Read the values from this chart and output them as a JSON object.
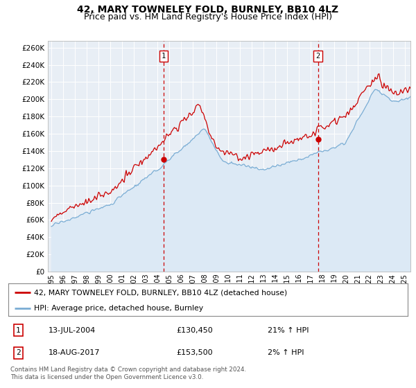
{
  "title": "42, MARY TOWNELEY FOLD, BURNLEY, BB10 4LZ",
  "subtitle": "Price paid vs. HM Land Registry's House Price Index (HPI)",
  "ylabel_ticks": [
    "£0",
    "£20K",
    "£40K",
    "£60K",
    "£80K",
    "£100K",
    "£120K",
    "£140K",
    "£160K",
    "£180K",
    "£200K",
    "£220K",
    "£240K",
    "£260K"
  ],
  "ytick_values": [
    0,
    20000,
    40000,
    60000,
    80000,
    100000,
    120000,
    140000,
    160000,
    180000,
    200000,
    220000,
    240000,
    260000
  ],
  "ylim": [
    0,
    268000
  ],
  "xlim_start": 1994.7,
  "xlim_end": 2025.5,
  "xtick_years": [
    1995,
    1996,
    1997,
    1998,
    1999,
    2000,
    2001,
    2002,
    2003,
    2004,
    2005,
    2006,
    2007,
    2008,
    2009,
    2010,
    2011,
    2012,
    2013,
    2014,
    2015,
    2016,
    2017,
    2018,
    2019,
    2020,
    2021,
    2022,
    2023,
    2024,
    2025
  ],
  "red_line_color": "#cc0000",
  "blue_line_color": "#7aadd4",
  "fill_color": "#dce9f5",
  "background_color": "#e8eef5",
  "vline_color": "#cc0000",
  "marker1_x": 2004.54,
  "marker1_y": 130450,
  "marker2_x": 2017.63,
  "marker2_y": 153500,
  "legend_label_red": "42, MARY TOWNELEY FOLD, BURNLEY, BB10 4LZ (detached house)",
  "legend_label_blue": "HPI: Average price, detached house, Burnley",
  "table_row1": [
    "1",
    "13-JUL-2004",
    "£130,450",
    "21% ↑ HPI"
  ],
  "table_row2": [
    "2",
    "18-AUG-2017",
    "£153,500",
    "2% ↑ HPI"
  ],
  "footer": "Contains HM Land Registry data © Crown copyright and database right 2024.\nThis data is licensed under the Open Government Licence v3.0.",
  "title_fontsize": 10,
  "subtitle_fontsize": 9
}
